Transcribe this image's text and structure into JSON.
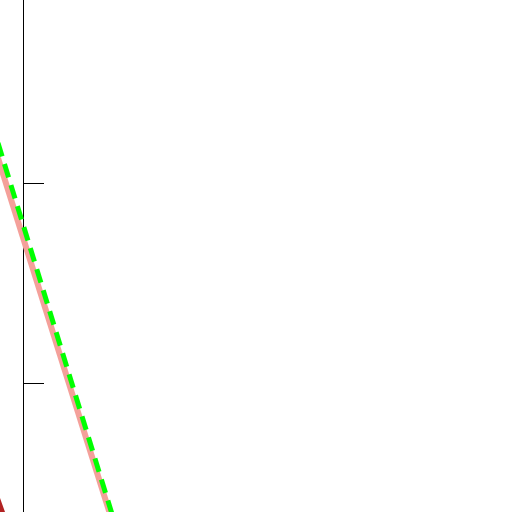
{
  "figure": {
    "lines": [
      {
        "color": "#f4a09a",
        "dashed": false
      },
      {
        "color": "#00ff00",
        "dashed": true
      }
    ],
    "corner_mark_color": "#b22222"
  }
}
